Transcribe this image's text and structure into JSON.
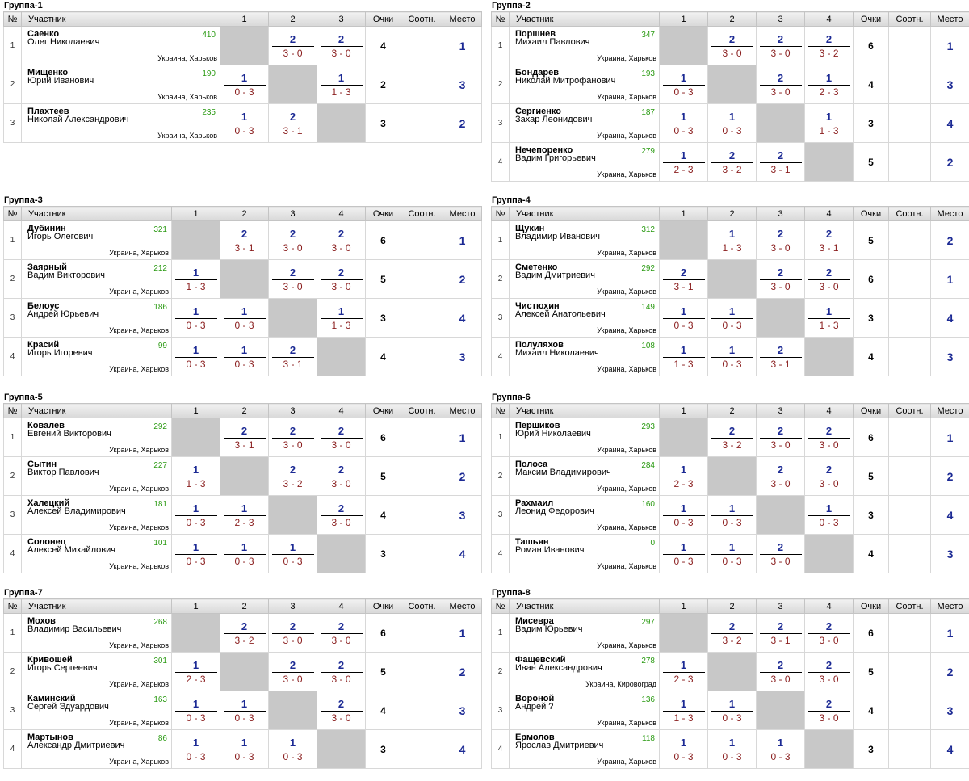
{
  "headers": {
    "no": "№",
    "name": "Участник",
    "points": "Очки",
    "ratio": "Соотн.",
    "place": "Место"
  },
  "groups": [
    {
      "title": "Группа-1",
      "cols": [
        "1",
        "2",
        "3"
      ],
      "rows": [
        {
          "n": "1",
          "surname": "Саенко",
          "first": "Олег Николаевич",
          "rating": "410",
          "city": "Украина, Харьков",
          "results": [
            null,
            {
              "t": "2",
              "b": "3 - 0"
            },
            {
              "t": "2",
              "b": "3 - 0"
            }
          ],
          "points": "4",
          "ratio": "",
          "place": "1"
        },
        {
          "n": "2",
          "surname": "Мищенко",
          "first": "Юрий Иванович",
          "rating": "190",
          "city": "Украина, Харьков",
          "results": [
            {
              "t": "1",
              "b": "0 - 3"
            },
            null,
            {
              "t": "1",
              "b": "1 - 3"
            }
          ],
          "points": "2",
          "ratio": "",
          "place": "3"
        },
        {
          "n": "3",
          "surname": "Плахтеев",
          "first": "Николай Александрович",
          "rating": "235",
          "city": "Украина, Харьков",
          "results": [
            {
              "t": "1",
              "b": "0 - 3"
            },
            {
              "t": "2",
              "b": "3 - 1"
            },
            null
          ],
          "points": "3",
          "ratio": "",
          "place": "2"
        }
      ]
    },
    {
      "title": "Группа-2",
      "cols": [
        "1",
        "2",
        "3",
        "4"
      ],
      "rows": [
        {
          "n": "1",
          "surname": "Поршнев",
          "first": "Михаил Павлович",
          "rating": "347",
          "city": "Украина, Харьков",
          "results": [
            null,
            {
              "t": "2",
              "b": "3 - 0"
            },
            {
              "t": "2",
              "b": "3 - 0"
            },
            {
              "t": "2",
              "b": "3 - 2"
            }
          ],
          "points": "6",
          "ratio": "",
          "place": "1"
        },
        {
          "n": "2",
          "surname": "Бондарев",
          "first": "Николай Митрофанович",
          "rating": "193",
          "city": "Украина, Харьков",
          "results": [
            {
              "t": "1",
              "b": "0 - 3"
            },
            null,
            {
              "t": "2",
              "b": "3 - 0"
            },
            {
              "t": "1",
              "b": "2 - 3"
            }
          ],
          "points": "4",
          "ratio": "",
          "place": "3"
        },
        {
          "n": "3",
          "surname": "Сергиенко",
          "first": "Захар Леонидович",
          "rating": "187",
          "city": "Украина, Харьков",
          "results": [
            {
              "t": "1",
              "b": "0 - 3"
            },
            {
              "t": "1",
              "b": "0 - 3"
            },
            null,
            {
              "t": "1",
              "b": "1 - 3"
            }
          ],
          "points": "3",
          "ratio": "",
          "place": "4"
        },
        {
          "n": "4",
          "surname": "Нечепоренко",
          "first": "Вадим Григорьевич",
          "rating": "279",
          "city": "Украина, Харьков",
          "results": [
            {
              "t": "1",
              "b": "2 - 3"
            },
            {
              "t": "2",
              "b": "3 - 2"
            },
            {
              "t": "2",
              "b": "3 - 1"
            },
            null
          ],
          "points": "5",
          "ratio": "",
          "place": "2"
        }
      ]
    },
    {
      "title": "Группа-3",
      "cols": [
        "1",
        "2",
        "3",
        "4"
      ],
      "rows": [
        {
          "n": "1",
          "surname": "Дубинин",
          "first": "Игорь Олегович",
          "rating": "321",
          "city": "Украина, Харьков",
          "results": [
            null,
            {
              "t": "2",
              "b": "3 - 1"
            },
            {
              "t": "2",
              "b": "3 - 0"
            },
            {
              "t": "2",
              "b": "3 - 0"
            }
          ],
          "points": "6",
          "ratio": "",
          "place": "1"
        },
        {
          "n": "2",
          "surname": "Заярный",
          "first": "Вадим Викторович",
          "rating": "212",
          "city": "Украина, Харьков",
          "results": [
            {
              "t": "1",
              "b": "1 - 3"
            },
            null,
            {
              "t": "2",
              "b": "3 - 0"
            },
            {
              "t": "2",
              "b": "3 - 0"
            }
          ],
          "points": "5",
          "ratio": "",
          "place": "2"
        },
        {
          "n": "3",
          "surname": "Белоус",
          "first": "Андрей Юрьевич",
          "rating": "186",
          "city": "Украина, Харьков",
          "results": [
            {
              "t": "1",
              "b": "0 - 3"
            },
            {
              "t": "1",
              "b": "0 - 3"
            },
            null,
            {
              "t": "1",
              "b": "1 - 3"
            }
          ],
          "points": "3",
          "ratio": "",
          "place": "4"
        },
        {
          "n": "4",
          "surname": "Красий",
          "first": "Игорь Игоревич",
          "rating": "99",
          "city": "Украина, Харьков",
          "results": [
            {
              "t": "1",
              "b": "0 - 3"
            },
            {
              "t": "1",
              "b": "0 - 3"
            },
            {
              "t": "2",
              "b": "3 - 1"
            },
            null
          ],
          "points": "4",
          "ratio": "",
          "place": "3"
        }
      ]
    },
    {
      "title": "Группа-4",
      "cols": [
        "1",
        "2",
        "3",
        "4"
      ],
      "rows": [
        {
          "n": "1",
          "surname": "Щукин",
          "first": "Владимир Иванович",
          "rating": "312",
          "city": "Украина, Харьков",
          "results": [
            null,
            {
              "t": "1",
              "b": "1 - 3"
            },
            {
              "t": "2",
              "b": "3 - 0"
            },
            {
              "t": "2",
              "b": "3 - 1"
            }
          ],
          "points": "5",
          "ratio": "",
          "place": "2"
        },
        {
          "n": "2",
          "surname": "Сметенко",
          "first": "Вадим Дмитриевич",
          "rating": "292",
          "city": "Украина, Харьков",
          "results": [
            {
              "t": "2",
              "b": "3 - 1"
            },
            null,
            {
              "t": "2",
              "b": "3 - 0"
            },
            {
              "t": "2",
              "b": "3 - 0"
            }
          ],
          "points": "6",
          "ratio": "",
          "place": "1"
        },
        {
          "n": "3",
          "surname": "Чистюхин",
          "first": "Алексей Анатольевич",
          "rating": "149",
          "city": "Украина, Харьков",
          "results": [
            {
              "t": "1",
              "b": "0 - 3"
            },
            {
              "t": "1",
              "b": "0 - 3"
            },
            null,
            {
              "t": "1",
              "b": "1 - 3"
            }
          ],
          "points": "3",
          "ratio": "",
          "place": "4"
        },
        {
          "n": "4",
          "surname": "Полуляхов",
          "first": "Михаил Николаевич",
          "rating": "108",
          "city": "Украина, Харьков",
          "results": [
            {
              "t": "1",
              "b": "1 - 3"
            },
            {
              "t": "1",
              "b": "0 - 3"
            },
            {
              "t": "2",
              "b": "3 - 1"
            },
            null
          ],
          "points": "4",
          "ratio": "",
          "place": "3"
        }
      ]
    },
    {
      "title": "Группа-5",
      "cols": [
        "1",
        "2",
        "3",
        "4"
      ],
      "rows": [
        {
          "n": "1",
          "surname": "Ковалев",
          "first": "Евгений Викторович",
          "rating": "292",
          "city": "Украина, Харьков",
          "results": [
            null,
            {
              "t": "2",
              "b": "3 - 1"
            },
            {
              "t": "2",
              "b": "3 - 0"
            },
            {
              "t": "2",
              "b": "3 - 0"
            }
          ],
          "points": "6",
          "ratio": "",
          "place": "1"
        },
        {
          "n": "2",
          "surname": "Сытин",
          "first": "Виктор Павлович",
          "rating": "227",
          "city": "Украина, Харьков",
          "results": [
            {
              "t": "1",
              "b": "1 - 3"
            },
            null,
            {
              "t": "2",
              "b": "3 - 2"
            },
            {
              "t": "2",
              "b": "3 - 0"
            }
          ],
          "points": "5",
          "ratio": "",
          "place": "2"
        },
        {
          "n": "3",
          "surname": "Халецкий",
          "first": "Алексей Владимирович",
          "rating": "181",
          "city": "Украина, Харьков",
          "results": [
            {
              "t": "1",
              "b": "0 - 3"
            },
            {
              "t": "1",
              "b": "2 - 3"
            },
            null,
            {
              "t": "2",
              "b": "3 - 0"
            }
          ],
          "points": "4",
          "ratio": "",
          "place": "3"
        },
        {
          "n": "4",
          "surname": "Солонец",
          "first": "Алексей Михайлович",
          "rating": "101",
          "city": "Украина, Харьков",
          "results": [
            {
              "t": "1",
              "b": "0 - 3"
            },
            {
              "t": "1",
              "b": "0 - 3"
            },
            {
              "t": "1",
              "b": "0 - 3"
            },
            null
          ],
          "points": "3",
          "ratio": "",
          "place": "4"
        }
      ]
    },
    {
      "title": "Группа-6",
      "cols": [
        "1",
        "2",
        "3",
        "4"
      ],
      "rows": [
        {
          "n": "1",
          "surname": "Першиков",
          "first": "Юрий Николаевич",
          "rating": "293",
          "city": "Украина, Харьков",
          "results": [
            null,
            {
              "t": "2",
              "b": "3 - 2"
            },
            {
              "t": "2",
              "b": "3 - 0"
            },
            {
              "t": "2",
              "b": "3 - 0"
            }
          ],
          "points": "6",
          "ratio": "",
          "place": "1"
        },
        {
          "n": "2",
          "surname": "Полоса",
          "first": "Максим Владимирович",
          "rating": "284",
          "city": "Украина, Харьков",
          "results": [
            {
              "t": "1",
              "b": "2 - 3"
            },
            null,
            {
              "t": "2",
              "b": "3 - 0"
            },
            {
              "t": "2",
              "b": "3 - 0"
            }
          ],
          "points": "5",
          "ratio": "",
          "place": "2"
        },
        {
          "n": "3",
          "surname": "Рахмаил",
          "first": "Леонид Федорович",
          "rating": "160",
          "city": "Украина, Харьков",
          "results": [
            {
              "t": "1",
              "b": "0 - 3"
            },
            {
              "t": "1",
              "b": "0 - 3"
            },
            null,
            {
              "t": "1",
              "b": "0 - 3"
            }
          ],
          "points": "3",
          "ratio": "",
          "place": "4"
        },
        {
          "n": "4",
          "surname": "Ташьян",
          "first": "Роман Иванович",
          "rating": "0",
          "city": "Украина, Харьков",
          "results": [
            {
              "t": "1",
              "b": "0 - 3"
            },
            {
              "t": "1",
              "b": "0 - 3"
            },
            {
              "t": "2",
              "b": "3 - 0"
            },
            null
          ],
          "points": "4",
          "ratio": "",
          "place": "3"
        }
      ]
    },
    {
      "title": "Группа-7",
      "cols": [
        "1",
        "2",
        "3",
        "4"
      ],
      "rows": [
        {
          "n": "1",
          "surname": "Мохов",
          "first": "Владимир Васильевич",
          "rating": "268",
          "city": "Украина, Харьков",
          "results": [
            null,
            {
              "t": "2",
              "b": "3 - 2"
            },
            {
              "t": "2",
              "b": "3 - 0"
            },
            {
              "t": "2",
              "b": "3 - 0"
            }
          ],
          "points": "6",
          "ratio": "",
          "place": "1"
        },
        {
          "n": "2",
          "surname": "Кривошей",
          "first": "Игорь Сергеевич",
          "rating": "301",
          "city": "Украина, Харьков",
          "results": [
            {
              "t": "1",
              "b": "2 - 3"
            },
            null,
            {
              "t": "2",
              "b": "3 - 0"
            },
            {
              "t": "2",
              "b": "3 - 0"
            }
          ],
          "points": "5",
          "ratio": "",
          "place": "2"
        },
        {
          "n": "3",
          "surname": "Каминский",
          "first": "Сергей Эдуардович",
          "rating": "163",
          "city": "Украина, Харьков",
          "results": [
            {
              "t": "1",
              "b": "0 - 3"
            },
            {
              "t": "1",
              "b": "0 - 3"
            },
            null,
            {
              "t": "2",
              "b": "3 - 0"
            }
          ],
          "points": "4",
          "ratio": "",
          "place": "3"
        },
        {
          "n": "4",
          "surname": "Мартынов",
          "first": "Александр Дмитриевич",
          "rating": "86",
          "city": "Украина, Харьков",
          "results": [
            {
              "t": "1",
              "b": "0 - 3"
            },
            {
              "t": "1",
              "b": "0 - 3"
            },
            {
              "t": "1",
              "b": "0 - 3"
            },
            null
          ],
          "points": "3",
          "ratio": "",
          "place": "4"
        }
      ]
    },
    {
      "title": "Группа-8",
      "cols": [
        "1",
        "2",
        "3",
        "4"
      ],
      "rows": [
        {
          "n": "1",
          "surname": "Мисевра",
          "first": "Вадим Юрьевич",
          "rating": "297",
          "city": "Украина, Харьков",
          "results": [
            null,
            {
              "t": "2",
              "b": "3 - 2"
            },
            {
              "t": "2",
              "b": "3 - 1"
            },
            {
              "t": "2",
              "b": "3 - 0"
            }
          ],
          "points": "6",
          "ratio": "",
          "place": "1"
        },
        {
          "n": "2",
          "surname": "Фащевский",
          "first": "Иван Александрович",
          "rating": "278",
          "city": "Украина, Кировоград",
          "results": [
            {
              "t": "1",
              "b": "2 - 3"
            },
            null,
            {
              "t": "2",
              "b": "3 - 0"
            },
            {
              "t": "2",
              "b": "3 - 0"
            }
          ],
          "points": "5",
          "ratio": "",
          "place": "2"
        },
        {
          "n": "3",
          "surname": "Вороной",
          "first": "Андрей ?",
          "rating": "136",
          "city": "Украина, Харьков",
          "results": [
            {
              "t": "1",
              "b": "1 - 3"
            },
            {
              "t": "1",
              "b": "0 - 3"
            },
            null,
            {
              "t": "2",
              "b": "3 - 0"
            }
          ],
          "points": "4",
          "ratio": "",
          "place": "3"
        },
        {
          "n": "4",
          "surname": "Ермолов",
          "first": "Ярослав Дмитриевич",
          "rating": "118",
          "city": "Украина, Харьков",
          "results": [
            {
              "t": "1",
              "b": "0 - 3"
            },
            {
              "t": "1",
              "b": "0 - 3"
            },
            {
              "t": "1",
              "b": "0 - 3"
            },
            null
          ],
          "points": "3",
          "ratio": "",
          "place": "4"
        }
      ]
    }
  ]
}
